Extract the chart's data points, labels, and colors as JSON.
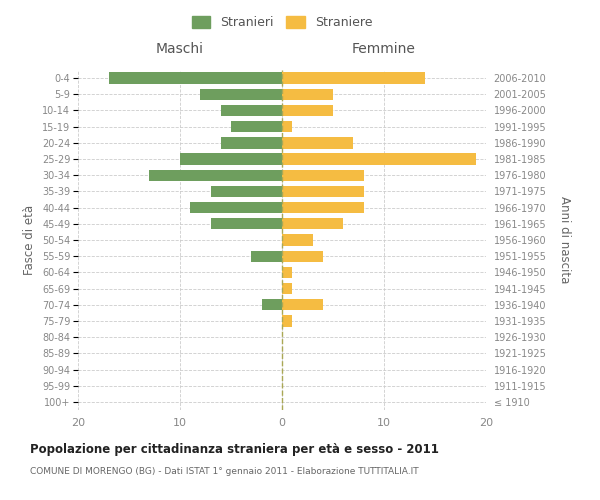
{
  "age_groups": [
    "100+",
    "95-99",
    "90-94",
    "85-89",
    "80-84",
    "75-79",
    "70-74",
    "65-69",
    "60-64",
    "55-59",
    "50-54",
    "45-49",
    "40-44",
    "35-39",
    "30-34",
    "25-29",
    "20-24",
    "15-19",
    "10-14",
    "5-9",
    "0-4"
  ],
  "birth_years": [
    "≤ 1910",
    "1911-1915",
    "1916-1920",
    "1921-1925",
    "1926-1930",
    "1931-1935",
    "1936-1940",
    "1941-1945",
    "1946-1950",
    "1951-1955",
    "1956-1960",
    "1961-1965",
    "1966-1970",
    "1971-1975",
    "1976-1980",
    "1981-1985",
    "1986-1990",
    "1991-1995",
    "1996-2000",
    "2001-2005",
    "2006-2010"
  ],
  "maschi": [
    0,
    0,
    0,
    0,
    0,
    0,
    2,
    0,
    0,
    3,
    0,
    7,
    9,
    7,
    13,
    10,
    6,
    5,
    6,
    8,
    17
  ],
  "femmine": [
    0,
    0,
    0,
    0,
    0,
    1,
    4,
    1,
    1,
    4,
    3,
    6,
    8,
    8,
    8,
    19,
    7,
    1,
    5,
    5,
    14
  ],
  "maschi_color": "#6e9e5e",
  "femmine_color": "#f5bc42",
  "xlim": 20,
  "title": "Popolazione per cittadinanza straniera per età e sesso - 2011",
  "subtitle": "COMUNE DI MORENGO (BG) - Dati ISTAT 1° gennaio 2011 - Elaborazione TUTTITALIA.IT",
  "ylabel_left": "Fasce di età",
  "ylabel_right": "Anni di nascita",
  "legend_maschi": "Stranieri",
  "legend_femmine": "Straniere",
  "maschi_label": "Maschi",
  "femmine_label": "Femmine",
  "background_color": "#ffffff",
  "grid_color": "#cccccc",
  "bar_height": 0.7
}
